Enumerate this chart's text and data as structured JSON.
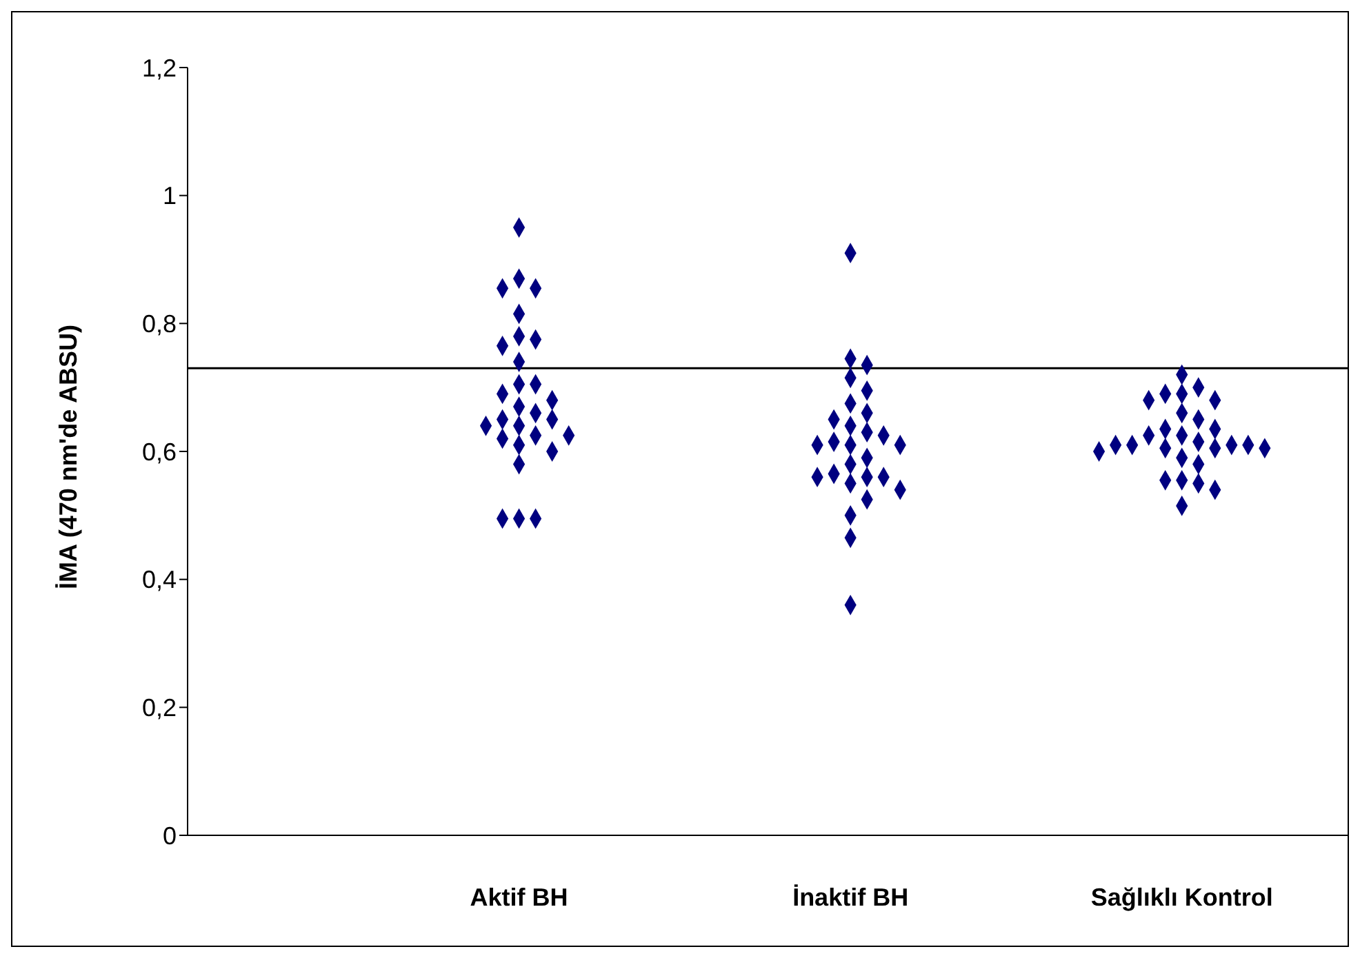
{
  "chart_data": {
    "type": "scatter",
    "ylabel": "İMA  (470 nm'de ABSU)",
    "categories": [
      "Aktif BH",
      "İnaktif BH",
      "Sağlıklı Kontrol"
    ],
    "series": [
      {
        "color": "#000080",
        "x": [
          "Aktif BH",
          "Aktif BH",
          "Aktif BH",
          "Aktif BH",
          "Aktif BH",
          "Aktif BH",
          "Aktif BH",
          "Aktif BH",
          "Aktif BH",
          "Aktif BH",
          "Aktif BH",
          "Aktif BH",
          "Aktif BH",
          "Aktif BH",
          "Aktif BH",
          "Aktif BH",
          "Aktif BH",
          "Aktif BH",
          "Aktif BH",
          "Aktif BH",
          "Aktif BH",
          "Aktif BH",
          "Aktif BH",
          "Aktif BH",
          "Aktif BH",
          "Aktif BH",
          "Aktif BH",
          "Aktif BH",
          "İnaktif BH",
          "İnaktif BH",
          "İnaktif BH",
          "İnaktif BH",
          "İnaktif BH",
          "İnaktif BH",
          "İnaktif BH",
          "İnaktif BH",
          "İnaktif BH",
          "İnaktif BH",
          "İnaktif BH",
          "İnaktif BH",
          "İnaktif BH",
          "İnaktif BH",
          "İnaktif BH",
          "İnaktif BH",
          "İnaktif BH",
          "İnaktif BH",
          "İnaktif BH",
          "İnaktif BH",
          "İnaktif BH",
          "İnaktif BH",
          "İnaktif BH",
          "İnaktif BH",
          "İnaktif BH",
          "İnaktif BH",
          "İnaktif BH",
          "Sağlıklı Kontrol",
          "Sağlıklı Kontrol",
          "Sağlıklı Kontrol",
          "Sağlıklı Kontrol",
          "Sağlıklı Kontrol",
          "Sağlıklı Kontrol",
          "Sağlıklı Kontrol",
          "Sağlıklı Kontrol",
          "Sağlıklı Kontrol",
          "Sağlıklı Kontrol",
          "Sağlıklı Kontrol",
          "Sağlıklı Kontrol",
          "Sağlıklı Kontrol",
          "Sağlıklı Kontrol",
          "Sağlıklı Kontrol",
          "Sağlıklı Kontrol",
          "Sağlıklı Kontrol",
          "Sağlıklı Kontrol",
          "Sağlıklı Kontrol",
          "Sağlıklı Kontrol",
          "Sağlıklı Kontrol",
          "Sağlıklı Kontrol",
          "Sağlıklı Kontrol",
          "Sağlıklı Kontrol",
          "Sağlıklı Kontrol",
          "Sağlıklı Kontrol",
          "Sağlıklı Kontrol",
          "Sağlıklı Kontrol"
        ],
        "values": [
          0.95,
          0.87,
          0.855,
          0.855,
          0.815,
          0.78,
          0.775,
          0.765,
          0.74,
          0.705,
          0.705,
          0.69,
          0.68,
          0.67,
          0.66,
          0.65,
          0.65,
          0.64,
          0.64,
          0.625,
          0.625,
          0.62,
          0.61,
          0.6,
          0.58,
          0.495,
          0.495,
          0.495,
          0.91,
          0.745,
          0.735,
          0.715,
          0.695,
          0.675,
          0.66,
          0.65,
          0.64,
          0.63,
          0.625,
          0.615,
          0.61,
          0.61,
          0.61,
          0.59,
          0.58,
          0.565,
          0.56,
          0.56,
          0.56,
          0.55,
          0.54,
          0.525,
          0.5,
          0.465,
          0.36,
          0.72,
          0.7,
          0.69,
          0.69,
          0.68,
          0.68,
          0.66,
          0.65,
          0.635,
          0.635,
          0.625,
          0.625,
          0.615,
          0.61,
          0.61,
          0.61,
          0.61,
          0.605,
          0.605,
          0.605,
          0.6,
          0.59,
          0.58,
          0.555,
          0.555,
          0.55,
          0.54,
          0.515
        ]
      }
    ],
    "marker": "diamond",
    "ylim": [
      0,
      1.2
    ],
    "yticks": [
      0,
      {
        "value": 0.2,
        "label": "0,2"
      },
      {
        "value": 0.4,
        "label": "0,4"
      },
      {
        "value": 0.6,
        "label": "0,6"
      },
      {
        "value": 0.8,
        "label": "0,8"
      },
      1,
      {
        "value": 1.2,
        "label": "1,2"
      }
    ],
    "ref_lines": [
      {
        "axis": "y",
        "value": 0.73,
        "color": "#000000"
      }
    ],
    "grid": false,
    "legend": false
  }
}
